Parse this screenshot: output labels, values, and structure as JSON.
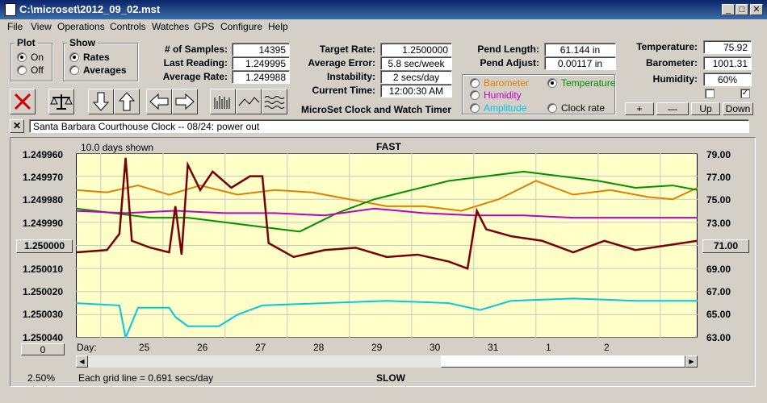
{
  "window": {
    "title": "C:\\microset\\2012_09_02.mst"
  },
  "menu": [
    "File",
    "View",
    "Operations",
    "Controls",
    "Watches",
    "GPS",
    "Configure",
    "Help"
  ],
  "plot_group": {
    "title": "Plot",
    "options": [
      "On",
      "Off"
    ],
    "selected": "On"
  },
  "show_group": {
    "title": "Show",
    "options": [
      "Rates",
      "Averages"
    ],
    "selected": "Rates"
  },
  "stats": {
    "samples_label": "# of Samples:",
    "samples": "14395",
    "last_label": "Last Reading:",
    "last": "1.249995",
    "avg_label": "Average Rate:",
    "avg": "1.249988",
    "target_label": "Target Rate:",
    "target": "1.2500000",
    "error_label": "Average Error:",
    "error": "5.8 sec/week",
    "instab_label": "Instability:",
    "instab": "2 secs/day",
    "time_label": "Current Time:",
    "time": "12:00:30 AM",
    "pend_len_label": "Pend Length:",
    "pend_len": "61.144 in",
    "pend_adj_label": "Pend Adjust:",
    "pend_adj": "0.00117 in",
    "temp_label": "Temperature:",
    "temp": "75.92",
    "baro_label": "Barometer:",
    "baro": "1001.31",
    "hum_label": "Humidity:",
    "hum": "60%"
  },
  "app_label": "MicroSet Clock and Watch Timer",
  "sensor_options": [
    {
      "label": "Barometer",
      "color": "#e08000",
      "selected": false
    },
    {
      "label": "Temperature",
      "color": "#009000",
      "selected": true
    },
    {
      "label": "Humidity",
      "color": "#c000c0",
      "selected": false
    },
    {
      "label": "Amplitude",
      "color": "#00c8e0",
      "selected": false
    },
    {
      "label": "Clock rate",
      "color": "#000000",
      "selected": false
    }
  ],
  "adjust_buttons": [
    "+",
    "—",
    "Up",
    "Down"
  ],
  "checkboxes": [
    false,
    true
  ],
  "note_text": "Santa Barbara Courthouse Clock  --  08/24: power out",
  "graph": {
    "days_shown": "10.0 days shown",
    "top_label": "FAST",
    "bottom_label": "SLOW",
    "grid_note": "Each grid line = 0.691 secs/day",
    "percent": "2.50%",
    "left_button": "1.250000",
    "right_button": "71.00",
    "zero_button": "0",
    "day_label": "Day:"
  },
  "chart_data": {
    "type": "line",
    "left_axis_ticks": [
      "1.249960",
      "1.249970",
      "1.249980",
      "1.249990",
      "1.250000",
      "1.250010",
      "1.250020",
      "1.250030",
      "1.250040"
    ],
    "right_axis_ticks": [
      "79.00",
      "77.00",
      "75.00",
      "73.00",
      "71.00",
      "69.00",
      "67.00",
      "65.00",
      "63.00"
    ],
    "day_ticks": [
      "25",
      "26",
      "27",
      "28",
      "29",
      "30",
      "31",
      "1",
      "2"
    ],
    "ylim_left": [
      1.25004,
      1.24996
    ],
    "xlim_days": [
      0,
      10
    ],
    "series": [
      {
        "color": "#e08000",
        "values": [
          [
            0,
            1.249976
          ],
          [
            0.5,
            1.249977
          ],
          [
            1,
            1.249974
          ],
          [
            1.5,
            1.249978
          ],
          [
            2,
            1.249974
          ],
          [
            2.6,
            1.249978
          ],
          [
            3.2,
            1.249976
          ],
          [
            3.8,
            1.249977
          ],
          [
            4.4,
            1.24998
          ],
          [
            5,
            1.249983
          ],
          [
            5.6,
            1.249983
          ],
          [
            6.2,
            1.249985
          ],
          [
            6.8,
            1.24998
          ],
          [
            7.4,
            1.249972
          ],
          [
            8,
            1.249978
          ],
          [
            8.6,
            1.249976
          ],
          [
            9.2,
            1.249979
          ],
          [
            9.6,
            1.24998
          ],
          [
            10,
            1.249975
          ]
        ]
      },
      {
        "color": "#009000",
        "values": [
          [
            0,
            1.249984
          ],
          [
            0.6,
            1.249986
          ],
          [
            1.2,
            1.249988
          ],
          [
            1.8,
            1.249988
          ],
          [
            2.4,
            1.24999
          ],
          [
            3.0,
            1.249992
          ],
          [
            3.6,
            1.249994
          ],
          [
            4.2,
            1.249986
          ],
          [
            4.8,
            1.24998
          ],
          [
            5.4,
            1.249976
          ],
          [
            6.0,
            1.249972
          ],
          [
            6.6,
            1.24997
          ],
          [
            7.2,
            1.249968
          ],
          [
            7.8,
            1.24997
          ],
          [
            8.4,
            1.249972
          ],
          [
            9.0,
            1.249975
          ],
          [
            9.6,
            1.249974
          ],
          [
            10,
            1.249976
          ]
        ]
      },
      {
        "color": "#c000c0",
        "values": [
          [
            0,
            1.249985
          ],
          [
            0.8,
            1.249986
          ],
          [
            1.6,
            1.249985
          ],
          [
            2.4,
            1.249986
          ],
          [
            3.2,
            1.249986
          ],
          [
            4.0,
            1.249987
          ],
          [
            4.8,
            1.249984
          ],
          [
            5.6,
            1.249986
          ],
          [
            6.4,
            1.249987
          ],
          [
            7.2,
            1.249987
          ],
          [
            8.0,
            1.249988
          ],
          [
            8.8,
            1.249988
          ],
          [
            9.6,
            1.249988
          ],
          [
            10,
            1.249988
          ]
        ]
      },
      {
        "color": "#00c8e0",
        "values": [
          [
            0,
            1.250025
          ],
          [
            0.7,
            1.250026
          ],
          [
            0.8,
            1.25004
          ],
          [
            1.0,
            1.250027
          ],
          [
            1.5,
            1.250027
          ],
          [
            1.6,
            1.250031
          ],
          [
            1.8,
            1.250035
          ],
          [
            2.3,
            1.250035
          ],
          [
            2.6,
            1.25003
          ],
          [
            3.0,
            1.250026
          ],
          [
            4.0,
            1.250025
          ],
          [
            5.0,
            1.250024
          ],
          [
            6.0,
            1.250025
          ],
          [
            6.5,
            1.250028
          ],
          [
            7.0,
            1.250024
          ],
          [
            8.0,
            1.250023
          ],
          [
            9.0,
            1.250024
          ],
          [
            10,
            1.250024
          ]
        ]
      },
      {
        "color": "#7a0000",
        "values": [
          [
            0,
            1.250003
          ],
          [
            0.5,
            1.250002
          ],
          [
            0.7,
            1.249995
          ],
          [
            0.8,
            1.249962
          ],
          [
            0.9,
            1.249998
          ],
          [
            1.2,
            1.250001
          ],
          [
            1.5,
            1.250003
          ],
          [
            1.6,
            1.249983
          ],
          [
            1.7,
            1.250004
          ],
          [
            1.8,
            1.249965
          ],
          [
            2.0,
            1.249976
          ],
          [
            2.2,
            1.249968
          ],
          [
            2.5,
            1.249975
          ],
          [
            2.8,
            1.24997
          ],
          [
            3.0,
            1.24997
          ],
          [
            3.1,
            1.249999
          ],
          [
            3.5,
            1.250005
          ],
          [
            4.0,
            1.250002
          ],
          [
            4.5,
            1.250001
          ],
          [
            5.0,
            1.250005
          ],
          [
            5.5,
            1.250004
          ],
          [
            6.0,
            1.250007
          ],
          [
            6.3,
            1.25001
          ],
          [
            6.45,
            1.249985
          ],
          [
            6.6,
            1.249993
          ],
          [
            7.0,
            1.249996
          ],
          [
            7.5,
            1.249998
          ],
          [
            8.0,
            1.250003
          ],
          [
            8.5,
            1.249998
          ],
          [
            9.0,
            1.250002
          ],
          [
            9.5,
            1.25
          ],
          [
            10,
            1.249998
          ]
        ]
      }
    ]
  }
}
